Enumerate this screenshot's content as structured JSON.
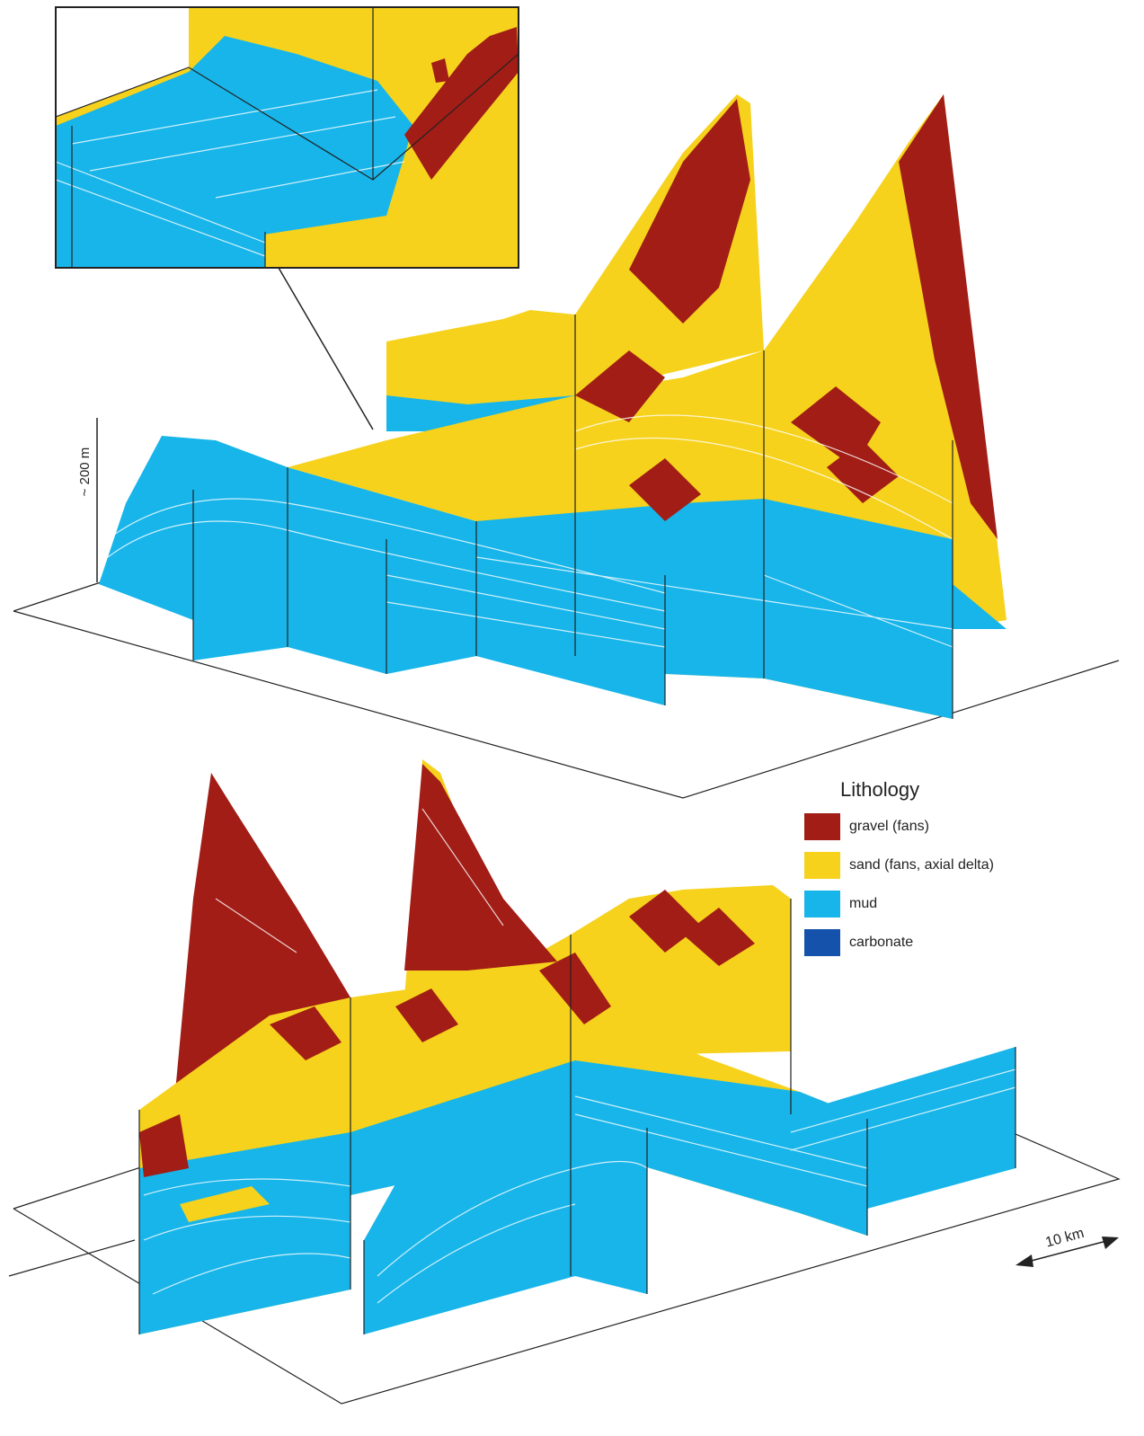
{
  "scale": {
    "vertical": "~ 200 m",
    "horizontal": "10 km"
  },
  "legend": {
    "title": "Lithology",
    "items": [
      {
        "label": "gravel (fans)",
        "color": "#a11d16"
      },
      {
        "label": "sand (fans, axial delta)",
        "color": "#f6d21c"
      },
      {
        "label": "mud",
        "color": "#17b5ea"
      },
      {
        "label": "carbonate",
        "color": "#1552ab"
      }
    ]
  }
}
